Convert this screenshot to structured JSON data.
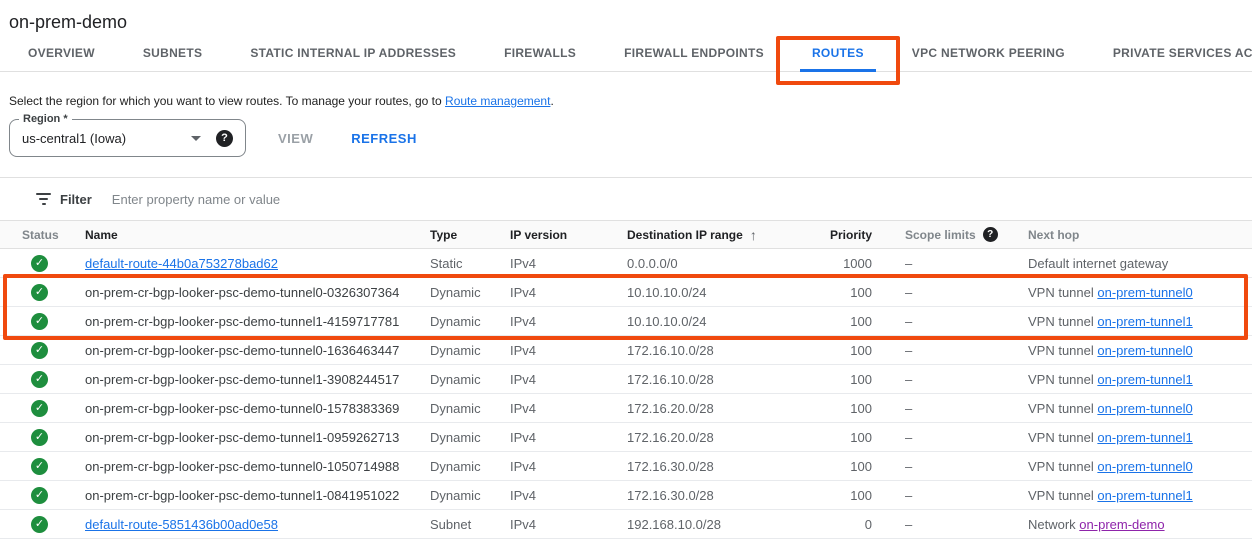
{
  "page": {
    "title": "on-prem-demo"
  },
  "tabs": [
    {
      "label": "OVERVIEW",
      "active": false,
      "annotated": false
    },
    {
      "label": "SUBNETS",
      "active": false,
      "annotated": false
    },
    {
      "label": "STATIC INTERNAL IP ADDRESSES",
      "active": false,
      "annotated": false
    },
    {
      "label": "FIREWALLS",
      "active": false,
      "annotated": false
    },
    {
      "label": "FIREWALL ENDPOINTS",
      "active": false,
      "annotated": false
    },
    {
      "label": "ROUTES",
      "active": true,
      "annotated": true
    },
    {
      "label": "VPC NETWORK PEERING",
      "active": false,
      "annotated": false
    },
    {
      "label": "PRIVATE SERVICES ACCESS",
      "active": false,
      "annotated": false
    }
  ],
  "description": {
    "text_before_link": "Select the region for which you want to view routes. To manage your routes, go to ",
    "link_label": "Route management",
    "text_after_link": "."
  },
  "region_field": {
    "label": "Region *",
    "value": "us-central1 (Iowa)",
    "help_glyph": "?"
  },
  "actions": {
    "view_label": "VIEW",
    "refresh_label": "REFRESH"
  },
  "filter": {
    "label": "Filter",
    "placeholder": "Enter property name or value"
  },
  "table": {
    "columns": [
      {
        "id": "status",
        "label": "Status",
        "muted": true
      },
      {
        "id": "name",
        "label": "Name"
      },
      {
        "id": "type",
        "label": "Type"
      },
      {
        "id": "ip_version",
        "label": "IP version"
      },
      {
        "id": "destination",
        "label": "Destination IP range",
        "sort": "ascending",
        "sort_glyph": "↑"
      },
      {
        "id": "priority",
        "label": "Priority",
        "align": "right"
      },
      {
        "id": "scope_limits",
        "label": "Scope limits",
        "muted": true,
        "help_glyph": "?"
      },
      {
        "id": "next_hop",
        "label": "Next hop",
        "muted": true
      }
    ],
    "rows": [
      {
        "status": "ok",
        "name": "default-route-44b0a753278bad62",
        "name_is_link": true,
        "type": "Static",
        "ip_version": "IPv4",
        "destination": "0.0.0.0/0",
        "priority": "1000",
        "scope_limits": "–",
        "next_hop_text": "Default internet gateway",
        "next_hop_link": "",
        "next_hop_link_visited": false,
        "highlighted": false
      },
      {
        "status": "ok",
        "name": "on-prem-cr-bgp-looker-psc-demo-tunnel0-0326307364",
        "name_is_link": false,
        "type": "Dynamic",
        "ip_version": "IPv4",
        "destination": "10.10.10.0/24",
        "priority": "100",
        "scope_limits": "–",
        "next_hop_text": "VPN tunnel",
        "next_hop_link": "on-prem-tunnel0",
        "next_hop_link_visited": false,
        "highlighted": true
      },
      {
        "status": "ok",
        "name": "on-prem-cr-bgp-looker-psc-demo-tunnel1-4159717781",
        "name_is_link": false,
        "type": "Dynamic",
        "ip_version": "IPv4",
        "destination": "10.10.10.0/24",
        "priority": "100",
        "scope_limits": "–",
        "next_hop_text": "VPN tunnel",
        "next_hop_link": "on-prem-tunnel1",
        "next_hop_link_visited": false,
        "highlighted": true
      },
      {
        "status": "ok",
        "name": "on-prem-cr-bgp-looker-psc-demo-tunnel0-1636463447",
        "name_is_link": false,
        "type": "Dynamic",
        "ip_version": "IPv4",
        "destination": "172.16.10.0/28",
        "priority": "100",
        "scope_limits": "–",
        "next_hop_text": "VPN tunnel",
        "next_hop_link": "on-prem-tunnel0",
        "next_hop_link_visited": false,
        "highlighted": false
      },
      {
        "status": "ok",
        "name": "on-prem-cr-bgp-looker-psc-demo-tunnel1-3908244517",
        "name_is_link": false,
        "type": "Dynamic",
        "ip_version": "IPv4",
        "destination": "172.16.10.0/28",
        "priority": "100",
        "scope_limits": "–",
        "next_hop_text": "VPN tunnel",
        "next_hop_link": "on-prem-tunnel1",
        "next_hop_link_visited": false,
        "highlighted": false
      },
      {
        "status": "ok",
        "name": "on-prem-cr-bgp-looker-psc-demo-tunnel0-1578383369",
        "name_is_link": false,
        "type": "Dynamic",
        "ip_version": "IPv4",
        "destination": "172.16.20.0/28",
        "priority": "100",
        "scope_limits": "–",
        "next_hop_text": "VPN tunnel",
        "next_hop_link": "on-prem-tunnel0",
        "next_hop_link_visited": false,
        "highlighted": false
      },
      {
        "status": "ok",
        "name": "on-prem-cr-bgp-looker-psc-demo-tunnel1-0959262713",
        "name_is_link": false,
        "type": "Dynamic",
        "ip_version": "IPv4",
        "destination": "172.16.20.0/28",
        "priority": "100",
        "scope_limits": "–",
        "next_hop_text": "VPN tunnel",
        "next_hop_link": "on-prem-tunnel1",
        "next_hop_link_visited": false,
        "highlighted": false
      },
      {
        "status": "ok",
        "name": "on-prem-cr-bgp-looker-psc-demo-tunnel0-1050714988",
        "name_is_link": false,
        "type": "Dynamic",
        "ip_version": "IPv4",
        "destination": "172.16.30.0/28",
        "priority": "100",
        "scope_limits": "–",
        "next_hop_text": "VPN tunnel",
        "next_hop_link": "on-prem-tunnel0",
        "next_hop_link_visited": false,
        "highlighted": false
      },
      {
        "status": "ok",
        "name": "on-prem-cr-bgp-looker-psc-demo-tunnel1-0841951022",
        "name_is_link": false,
        "type": "Dynamic",
        "ip_version": "IPv4",
        "destination": "172.16.30.0/28",
        "priority": "100",
        "scope_limits": "–",
        "next_hop_text": "VPN tunnel",
        "next_hop_link": "on-prem-tunnel1",
        "next_hop_link_visited": false,
        "highlighted": false
      },
      {
        "status": "ok",
        "name": "default-route-5851436b00ad0e58",
        "name_is_link": true,
        "type": "Subnet",
        "ip_version": "IPv4",
        "destination": "192.168.10.0/28",
        "priority": "0",
        "scope_limits": "–",
        "next_hop_text": "Network",
        "next_hop_link": "on-prem-demo",
        "next_hop_link_visited": true,
        "highlighted": false
      }
    ]
  },
  "colors": {
    "accent_blue": "#1a73e8",
    "link_purple": "#8e24aa",
    "annotation_orange": "#f0490e",
    "status_green": "#1e8e3e",
    "text_dark": "#202124",
    "text_gray": "#5f6368",
    "border_gray": "#e0e0e0",
    "header_bg": "#fafafa"
  }
}
